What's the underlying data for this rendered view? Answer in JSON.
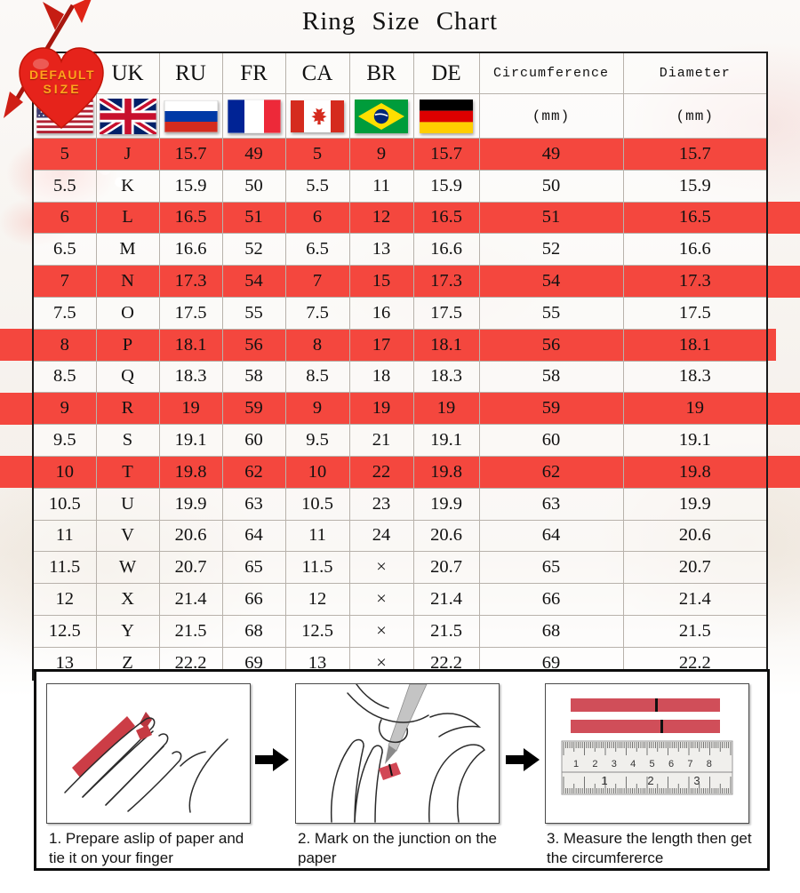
{
  "title": "Ring Size Chart",
  "badge": {
    "line1": "DEFAULT",
    "line2": "SIZE"
  },
  "colors": {
    "highlight_red": "#f4473e",
    "badge_heart_red": "#e6231b",
    "badge_text_gold": "#ffa41c",
    "paper_strip_red": "#d04e59"
  },
  "table": {
    "headers": [
      "US",
      "UK",
      "RU",
      "FR",
      "CA",
      "BR",
      "DE",
      "Circumference",
      "Diameter"
    ],
    "flags": [
      "us",
      "uk",
      "ru",
      "fr",
      "ca",
      "br",
      "de"
    ],
    "units": [
      "(mm)",
      "(mm)"
    ]
  },
  "chart_data": {
    "type": "table",
    "title": "Ring Size Chart",
    "columns": [
      "US",
      "UK",
      "RU",
      "FR",
      "CA",
      "BR",
      "DE",
      "Circumference (mm)",
      "Diameter (mm)"
    ],
    "rows": [
      [
        "5",
        "J",
        "15.7",
        "49",
        "5",
        "9",
        "15.7",
        "49",
        "15.7"
      ],
      [
        "5.5",
        "K",
        "15.9",
        "50",
        "5.5",
        "11",
        "15.9",
        "50",
        "15.9"
      ],
      [
        "6",
        "L",
        "16.5",
        "51",
        "6",
        "12",
        "16.5",
        "51",
        "16.5"
      ],
      [
        "6.5",
        "M",
        "16.6",
        "52",
        "6.5",
        "13",
        "16.6",
        "52",
        "16.6"
      ],
      [
        "7",
        "N",
        "17.3",
        "54",
        "7",
        "15",
        "17.3",
        "54",
        "17.3"
      ],
      [
        "7.5",
        "O",
        "17.5",
        "55",
        "7.5",
        "16",
        "17.5",
        "55",
        "17.5"
      ],
      [
        "8",
        "P",
        "18.1",
        "56",
        "8",
        "17",
        "18.1",
        "56",
        "18.1"
      ],
      [
        "8.5",
        "Q",
        "18.3",
        "58",
        "8.5",
        "18",
        "18.3",
        "58",
        "18.3"
      ],
      [
        "9",
        "R",
        "19",
        "59",
        "9",
        "19",
        "19",
        "59",
        "19"
      ],
      [
        "9.5",
        "S",
        "19.1",
        "60",
        "9.5",
        "21",
        "19.1",
        "60",
        "19.1"
      ],
      [
        "10",
        "T",
        "19.8",
        "62",
        "10",
        "22",
        "19.8",
        "62",
        "19.8"
      ],
      [
        "10.5",
        "U",
        "19.9",
        "63",
        "10.5",
        "23",
        "19.9",
        "63",
        "19.9"
      ],
      [
        "11",
        "V",
        "20.6",
        "64",
        "11",
        "24",
        "20.6",
        "64",
        "20.6"
      ],
      [
        "11.5",
        "W",
        "20.7",
        "65",
        "11.5",
        "×",
        "20.7",
        "65",
        "20.7"
      ],
      [
        "12",
        "X",
        "21.4",
        "66",
        "12",
        "×",
        "21.4",
        "66",
        "21.4"
      ],
      [
        "12.5",
        "Y",
        "21.5",
        "68",
        "12.5",
        "×",
        "21.5",
        "68",
        "21.5"
      ],
      [
        "13",
        "Z",
        "22.2",
        "69",
        "13",
        "×",
        "22.2",
        "69",
        "22.2"
      ]
    ],
    "highlighted_rows": [
      0,
      2,
      4,
      6,
      8,
      10
    ],
    "highlight_meaning": "DEFAULT SIZE"
  },
  "instructions": {
    "steps": [
      {
        "caption": "1. Prepare aslip of paper and tie it on your finger"
      },
      {
        "caption": "2. Mark on the junction on the paper"
      },
      {
        "caption": "3. Measure the length then get the circumfererce"
      }
    ],
    "ruler": {
      "top_scale": [
        "1",
        "2",
        "3",
        "4",
        "5",
        "6",
        "7",
        "8"
      ],
      "bottom_scale": [
        "1",
        "2",
        "3"
      ]
    }
  }
}
